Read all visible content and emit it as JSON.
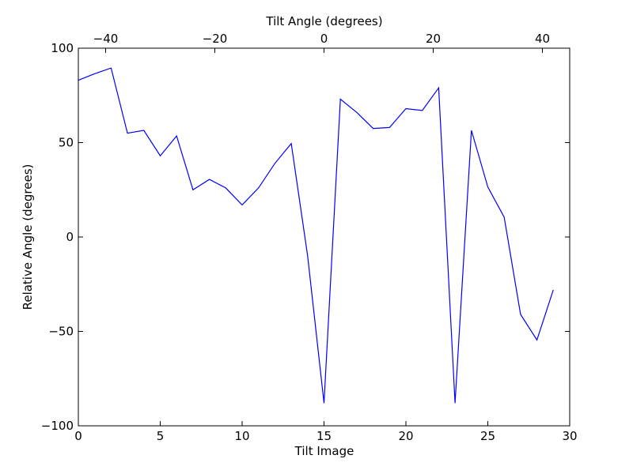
{
  "chart_data": {
    "type": "line",
    "title": "",
    "xlabel": "Tilt Image",
    "ylabel": "Relative Angle (degrees)",
    "top_xlabel": "Tilt Angle (degrees)",
    "xlim": [
      0,
      30
    ],
    "ylim": [
      -100,
      100
    ],
    "xticks": [
      0,
      5,
      10,
      15,
      20,
      25,
      30
    ],
    "xtick_labels": [
      "0",
      "5",
      "10",
      "15",
      "20",
      "25",
      "30"
    ],
    "yticks": [
      -100,
      -50,
      0,
      50,
      100
    ],
    "ytick_labels": [
      "−100",
      "−50",
      "0",
      "50",
      "100"
    ],
    "top_xlim": [
      -45,
      45
    ],
    "top_xticks": [
      -40,
      -20,
      0,
      20,
      40
    ],
    "top_xtick_labels": [
      "−40",
      "−20",
      "0",
      "20",
      "40"
    ],
    "grid": false,
    "line_color": "#0000ff",
    "series": [
      {
        "x": [
          0,
          1,
          2,
          3,
          4,
          5,
          6,
          7,
          8,
          9,
          10,
          11,
          12,
          13,
          14,
          15,
          16,
          17,
          18,
          19,
          20,
          21,
          22,
          23,
          24,
          25,
          26,
          27,
          28,
          29
        ],
        "values": [
          83,
          86.5,
          89.5,
          55,
          56.5,
          43,
          53.5,
          25,
          30.5,
          26,
          17,
          26,
          39,
          49.5,
          -10,
          -88,
          73,
          66,
          57.5,
          58,
          68,
          67,
          79,
          -88,
          56.5,
          26.5,
          10.5,
          -41,
          -54.5,
          -28
        ]
      }
    ]
  }
}
